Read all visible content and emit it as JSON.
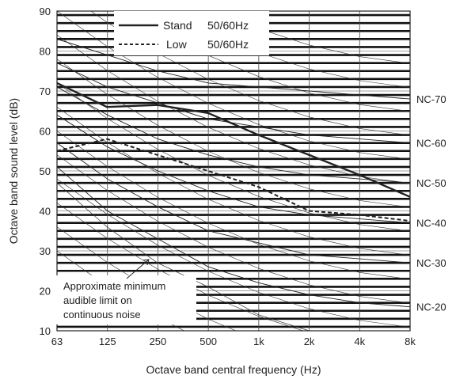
{
  "chart_data": {
    "type": "line",
    "title": "",
    "xlabel": "Octave band central frequency (Hz)",
    "ylabel": "Octave band sound level (dB)",
    "x_scale": "log2",
    "x_ticks": [
      "63",
      "125",
      "250",
      "500",
      "1k",
      "2k",
      "4k",
      "8k"
    ],
    "x_values_hz": [
      63,
      125,
      250,
      500,
      1000,
      2000,
      4000,
      8000
    ],
    "y_ticks": [
      10,
      20,
      30,
      40,
      50,
      60,
      70,
      80,
      90
    ],
    "ylim": [
      10,
      90
    ],
    "grid": true,
    "legend_position": "top-left",
    "series": [
      {
        "name": "Stand",
        "legend_value": "50/60Hz",
        "line_style": "solid",
        "color": "#222222",
        "points": [
          [
            63,
            72
          ],
          [
            125,
            66
          ],
          [
            250,
            66.5
          ],
          [
            500,
            64.5
          ],
          [
            1000,
            59
          ],
          [
            2000,
            54
          ],
          [
            4000,
            49
          ],
          [
            8000,
            43.5
          ]
        ]
      },
      {
        "name": "Low",
        "legend_value": "50/60Hz",
        "line_style": "dashed",
        "color": "#222222",
        "points": [
          [
            63,
            55
          ],
          [
            125,
            58
          ],
          [
            250,
            54
          ],
          [
            500,
            50
          ],
          [
            1000,
            46
          ],
          [
            2000,
            40
          ],
          [
            4000,
            39
          ],
          [
            8000,
            37.5
          ]
        ]
      }
    ],
    "nc_curves": [
      {
        "label": "NC-70",
        "values": [
          83,
          79,
          75,
          72,
          71,
          70,
          69,
          68
        ]
      },
      {
        "label": "NC-60",
        "values": [
          77,
          71,
          67,
          63,
          61,
          59,
          58,
          57
        ]
      },
      {
        "label": "NC-50",
        "values": [
          71,
          64,
          58,
          54,
          51,
          49,
          48,
          47
        ]
      },
      {
        "label": "NC-40",
        "values": [
          64,
          56,
          50,
          45,
          41,
          39,
          38,
          37
        ]
      },
      {
        "label": "NC-30",
        "values": [
          57,
          48,
          41,
          35,
          32,
          29,
          28,
          27
        ]
      },
      {
        "label": "NC-20",
        "values": [
          51,
          40,
          33,
          26,
          22,
          19,
          17,
          16
        ]
      }
    ],
    "annotation": {
      "lines": [
        "Approximate minimum",
        "audible limit on",
        "continuous noise"
      ]
    },
    "audible_limit_curve": [
      [
        63,
        47
      ],
      [
        125,
        36
      ],
      [
        250,
        27
      ],
      [
        500,
        21
      ],
      [
        1000,
        14
      ],
      [
        2000,
        10
      ]
    ]
  }
}
